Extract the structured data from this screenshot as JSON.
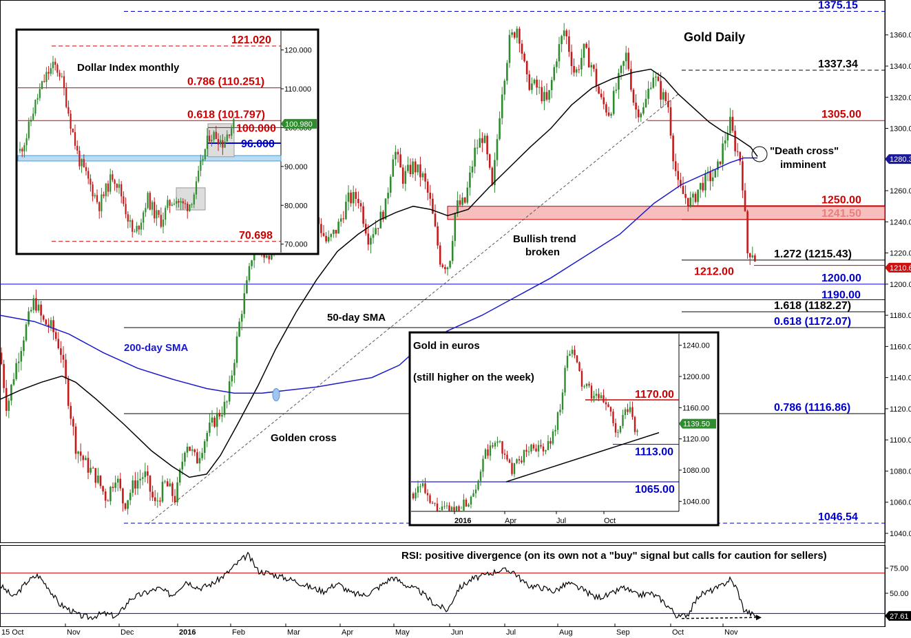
{
  "chart_data": {
    "main": {
      "type": "candlestick",
      "title": "Gold Daily",
      "ylim": [
        1036,
        1378
      ],
      "y_ticks": [
        "1360.00",
        "1340.00",
        "1320.00",
        "1300.00",
        "1280.00",
        "1260.00",
        "1240.00",
        "1220.00",
        "1200.00",
        "1180.00",
        "1160.00",
        "1140.00",
        "1120.00",
        "1100.00",
        "1080.00",
        "1060.00",
        "1040.00"
      ],
      "x_ticks": [
        "15 Oct",
        "Nov",
        "Dec",
        "2016",
        "Feb",
        "Mar",
        "Apr",
        "May",
        "Jun",
        "Jul",
        "Aug",
        "Sep",
        "Oct",
        "Nov"
      ],
      "price_path": [
        [
          0,
          1156
        ],
        [
          10,
          1120
        ],
        [
          22,
          1146
        ],
        [
          35,
          1168
        ],
        [
          50,
          1190
        ],
        [
          62,
          1176
        ],
        [
          75,
          1172
        ],
        [
          88,
          1158
        ],
        [
          98,
          1130
        ],
        [
          110,
          1096
        ],
        [
          125,
          1084
        ],
        [
          140,
          1076
        ],
        [
          155,
          1062
        ],
        [
          168,
          1078
        ],
        [
          180,
          1058
        ],
        [
          195,
          1072
        ],
        [
          210,
          1078
        ],
        [
          225,
          1058
        ],
        [
          240,
          1072
        ],
        [
          255,
          1062
        ],
        [
          270,
          1100
        ],
        [
          285,
          1086
        ],
        [
          300,
          1104
        ],
        [
          315,
          1115
        ],
        [
          330,
          1124
        ],
        [
          340,
          1152
        ],
        [
          350,
          1182
        ],
        [
          360,
          1202
        ],
        [
          372,
          1236
        ],
        [
          385,
          1214
        ],
        [
          400,
          1232
        ],
        [
          415,
          1225
        ],
        [
          430,
          1240
        ],
        [
          445,
          1226
        ],
        [
          460,
          1242
        ],
        [
          475,
          1226
        ],
        [
          490,
          1236
        ],
        [
          505,
          1254
        ],
        [
          520,
          1256
        ],
        [
          535,
          1230
        ],
        [
          550,
          1240
        ],
        [
          560,
          1250
        ],
        [
          572,
          1288
        ],
        [
          585,
          1268
        ],
        [
          600,
          1276
        ],
        [
          615,
          1268
        ],
        [
          625,
          1252
        ],
        [
          640,
          1214
        ],
        [
          652,
          1212
        ],
        [
          662,
          1250
        ],
        [
          675,
          1252
        ],
        [
          690,
          1286
        ],
        [
          702,
          1296
        ],
        [
          715,
          1260
        ],
        [
          728,
          1322
        ],
        [
          740,
          1356
        ],
        [
          752,
          1366
        ],
        [
          765,
          1330
        ],
        [
          780,
          1326
        ],
        [
          795,
          1316
        ],
        [
          808,
          1346
        ],
        [
          820,
          1364
        ],
        [
          835,
          1334
        ],
        [
          848,
          1350
        ],
        [
          860,
          1340
        ],
        [
          872,
          1318
        ],
        [
          885,
          1310
        ],
        [
          898,
          1330
        ],
        [
          910,
          1348
        ],
        [
          922,
          1312
        ],
        [
          935,
          1312
        ],
        [
          948,
          1336
        ],
        [
          960,
          1322
        ],
        [
          970,
          1316
        ],
        [
          978,
          1282
        ],
        [
          985,
          1262
        ],
        [
          995,
          1256
        ],
        [
          1005,
          1252
        ],
        [
          1015,
          1262
        ],
        [
          1028,
          1268
        ],
        [
          1040,
          1270
        ],
        [
          1052,
          1292
        ],
        [
          1060,
          1304
        ],
        [
          1068,
          1288
        ],
        [
          1075,
          1280
        ],
        [
          1080,
          1258
        ],
        [
          1085,
          1220
        ],
        [
          1092,
          1222
        ],
        [
          1100,
          1212
        ]
      ],
      "sma50": [
        [
          0,
          1126
        ],
        [
          30,
          1132
        ],
        [
          60,
          1137
        ],
        [
          90,
          1141
        ],
        [
          110,
          1137
        ],
        [
          140,
          1126
        ],
        [
          180,
          1110
        ],
        [
          220,
          1093
        ],
        [
          250,
          1083
        ],
        [
          275,
          1076
        ],
        [
          300,
          1078
        ],
        [
          320,
          1090
        ],
        [
          345,
          1110
        ],
        [
          375,
          1135
        ],
        [
          400,
          1158
        ],
        [
          430,
          1182
        ],
        [
          460,
          1203
        ],
        [
          490,
          1221
        ],
        [
          520,
          1232
        ],
        [
          550,
          1241
        ],
        [
          575,
          1246
        ],
        [
          600,
          1250
        ],
        [
          625,
          1248
        ],
        [
          650,
          1244
        ],
        [
          680,
          1248
        ],
        [
          710,
          1262
        ],
        [
          740,
          1275
        ],
        [
          770,
          1288
        ],
        [
          800,
          1300
        ],
        [
          830,
          1315
        ],
        [
          860,
          1326
        ],
        [
          890,
          1332
        ],
        [
          920,
          1336
        ],
        [
          945,
          1338
        ],
        [
          965,
          1332
        ],
        [
          985,
          1322
        ],
        [
          1010,
          1312
        ],
        [
          1030,
          1304
        ],
        [
          1050,
          1298
        ],
        [
          1070,
          1294
        ],
        [
          1090,
          1288
        ],
        [
          1100,
          1282
        ]
      ],
      "sma200": [
        [
          0,
          1180
        ],
        [
          50,
          1176
        ],
        [
          100,
          1168
        ],
        [
          150,
          1156
        ],
        [
          200,
          1146
        ],
        [
          250,
          1139
        ],
        [
          300,
          1133
        ],
        [
          340,
          1130
        ],
        [
          380,
          1130
        ],
        [
          420,
          1132
        ],
        [
          460,
          1134
        ],
        [
          500,
          1137
        ],
        [
          540,
          1140
        ],
        [
          580,
          1148
        ],
        [
          610,
          1160
        ],
        [
          650,
          1170
        ],
        [
          700,
          1180
        ],
        [
          750,
          1192
        ],
        [
          800,
          1204
        ],
        [
          850,
          1218
        ],
        [
          900,
          1232
        ],
        [
          950,
          1252
        ],
        [
          990,
          1264
        ],
        [
          1030,
          1272
        ],
        [
          1060,
          1278
        ],
        [
          1080,
          1281
        ],
        [
          1100,
          1281
        ]
      ],
      "horizontal_levels": [
        {
          "label": "1375.15",
          "value": 1375.15,
          "color": "#0000cc"
        },
        {
          "label": "1337.34",
          "value": 1337.34,
          "color": "#000000"
        },
        {
          "label": "1305.00",
          "value": 1305.0,
          "color": "#cc0000"
        },
        {
          "label": "1250.00",
          "value": 1250.0,
          "color": "#cc0000"
        },
        {
          "label": "1241.50",
          "value": 1241.5,
          "color": "#cc0000"
        },
        {
          "label": "1.272 (1215.43)",
          "value": 1215.43,
          "color": "#000000"
        },
        {
          "label": "1212.00",
          "value": 1212.0,
          "color": "#cc0000"
        },
        {
          "label": "1200.00",
          "value": 1200.0,
          "color": "#0000cc"
        },
        {
          "label": "1190.00",
          "value": 1190.0,
          "color": "#0000cc"
        },
        {
          "label": "1.618 (1182.27)",
          "value": 1182.27,
          "color": "#000000"
        },
        {
          "label": "0.618 (1172.07)",
          "value": 1172.07,
          "color": "#0000cc"
        },
        {
          "label": "0.786 (1116.86)",
          "value": 1116.86,
          "color": "#0000cc"
        },
        {
          "label": "1046.54",
          "value": 1046.54,
          "color": "#0000cc"
        }
      ],
      "zone_label": "1241.50–1250.00",
      "current_price": "1210.60",
      "sma200_tag": "1280.31",
      "annotations": {
        "bullish_trend": "Bullish trend",
        "bullish_broken": "broken",
        "sma50_label": "50-day SMA",
        "sma200_label": "200-day SMA",
        "golden_cross": "Golden cross",
        "death_cross_1": "\"Death cross\"",
        "death_cross_2": "imminent"
      }
    },
    "rsi": {
      "type": "line",
      "title": "RSI: positive divergence (on its own not a \"buy\" signal but calls for caution for sellers)",
      "ylim": [
        20,
        95
      ],
      "y_ticks": [
        "75.00",
        "50.00"
      ],
      "upper_level": 70,
      "lower_level": 30,
      "current": "27.61",
      "path": [
        [
          0,
          58
        ],
        [
          20,
          46
        ],
        [
          40,
          62
        ],
        [
          55,
          68
        ],
        [
          70,
          56
        ],
        [
          85,
          40
        ],
        [
          100,
          34
        ],
        [
          115,
          28
        ],
        [
          130,
          26
        ],
        [
          150,
          30
        ],
        [
          170,
          27
        ],
        [
          190,
          45
        ],
        [
          210,
          50
        ],
        [
          230,
          55
        ],
        [
          250,
          48
        ],
        [
          270,
          62
        ],
        [
          290,
          55
        ],
        [
          310,
          60
        ],
        [
          330,
          70
        ],
        [
          345,
          80
        ],
        [
          360,
          88
        ],
        [
          375,
          72
        ],
        [
          390,
          70
        ],
        [
          410,
          66
        ],
        [
          430,
          62
        ],
        [
          450,
          56
        ],
        [
          470,
          52
        ],
        [
          490,
          60
        ],
        [
          510,
          50
        ],
        [
          530,
          48
        ],
        [
          550,
          56
        ],
        [
          570,
          66
        ],
        [
          590,
          58
        ],
        [
          610,
          52
        ],
        [
          630,
          40
        ],
        [
          650,
          33
        ],
        [
          665,
          54
        ],
        [
          685,
          64
        ],
        [
          705,
          68
        ],
        [
          725,
          73
        ],
        [
          745,
          72
        ],
        [
          765,
          58
        ],
        [
          785,
          56
        ],
        [
          805,
          52
        ],
        [
          825,
          60
        ],
        [
          845,
          54
        ],
        [
          865,
          46
        ],
        [
          885,
          48
        ],
        [
          905,
          56
        ],
        [
          925,
          48
        ],
        [
          945,
          50
        ],
        [
          960,
          44
        ],
        [
          975,
          34
        ],
        [
          985,
          26
        ],
        [
          1000,
          30
        ],
        [
          1015,
          48
        ],
        [
          1030,
          52
        ],
        [
          1045,
          56
        ],
        [
          1060,
          64
        ],
        [
          1070,
          55
        ],
        [
          1080,
          34
        ],
        [
          1090,
          30
        ],
        [
          1100,
          27
        ]
      ]
    },
    "inset_dxy": {
      "type": "candlestick",
      "title": "Dollar Index monthly",
      "ylim": [
        68,
        124
      ],
      "y_ticks": [
        "120.000",
        "110.000",
        "100.000",
        "90.000",
        "80.000",
        "70.000"
      ],
      "path": [
        [
          0,
          94
        ],
        [
          10,
          98
        ],
        [
          20,
          105
        ],
        [
          30,
          110
        ],
        [
          40,
          114
        ],
        [
          50,
          116
        ],
        [
          58,
          114
        ],
        [
          66,
          108
        ],
        [
          75,
          100
        ],
        [
          85,
          92
        ],
        [
          95,
          88
        ],
        [
          105,
          84
        ],
        [
          115,
          80
        ],
        [
          125,
          84
        ],
        [
          135,
          88
        ],
        [
          145,
          84
        ],
        [
          155,
          78
        ],
        [
          165,
          72
        ],
        [
          175,
          76
        ],
        [
          185,
          82
        ],
        [
          195,
          78
        ],
        [
          205,
          76
        ],
        [
          215,
          80
        ],
        [
          225,
          82
        ],
        [
          235,
          80
        ],
        [
          245,
          80
        ],
        [
          255,
          84
        ],
        [
          265,
          92
        ],
        [
          275,
          98
        ],
        [
          285,
          98
        ],
        [
          295,
          96
        ],
        [
          305,
          100
        ],
        [
          312,
          101
        ]
      ],
      "levels": [
        {
          "label": "121.020",
          "value": 121.02,
          "color": "#cc0000"
        },
        {
          "label": "0.786 (110.251)",
          "value": 110.251,
          "color": "#cc0000"
        },
        {
          "label": "0.618 (101.797)",
          "value": 101.797,
          "color": "#cc0000"
        },
        {
          "label": "100.000",
          "value": 100.0,
          "color": "#cc0000"
        },
        {
          "label": "96.000",
          "value": 96.0,
          "color": "#0000cc"
        },
        {
          "label": "70.698",
          "value": 70.698,
          "color": "#cc0000"
        }
      ],
      "current": "100.980"
    },
    "inset_eur": {
      "type": "candlestick",
      "title": "Gold in euros",
      "subtitle": "(still higher on the week)",
      "ylim": [
        1028,
        1252
      ],
      "y_ticks": [
        "1240.00",
        "1200.00",
        "1160.00",
        "1120.00",
        "1080.00",
        "1040.00"
      ],
      "x_ticks": [
        "2016",
        "Apr",
        "Jul",
        "Oct"
      ],
      "path": [
        [
          0,
          1050
        ],
        [
          12,
          1066
        ],
        [
          22,
          1038
        ],
        [
          40,
          1028
        ],
        [
          60,
          1030
        ],
        [
          80,
          1040
        ],
        [
          95,
          1070
        ],
        [
          105,
          1100
        ],
        [
          115,
          1108
        ],
        [
          125,
          1120
        ],
        [
          135,
          1090
        ],
        [
          145,
          1080
        ],
        [
          160,
          1100
        ],
        [
          175,
          1112
        ],
        [
          190,
          1102
        ],
        [
          205,
          1130
        ],
        [
          215,
          1170
        ],
        [
          225,
          1232
        ],
        [
          235,
          1226
        ],
        [
          245,
          1190
        ],
        [
          255,
          1182
        ],
        [
          265,
          1172
        ],
        [
          275,
          1170
        ],
        [
          285,
          1164
        ],
        [
          295,
          1120
        ],
        [
          305,
          1148
        ],
        [
          315,
          1160
        ],
        [
          322,
          1128
        ],
        [
          328,
          1138
        ]
      ],
      "levels": [
        {
          "label": "1170.00",
          "value": 1170.0,
          "color": "#cc0000"
        },
        {
          "label": "1113.00",
          "value": 1113.0,
          "color": "#0000cc"
        },
        {
          "label": "1065.00",
          "value": 1065.0,
          "color": "#0000cc"
        }
      ],
      "current": "1139.50"
    }
  }
}
